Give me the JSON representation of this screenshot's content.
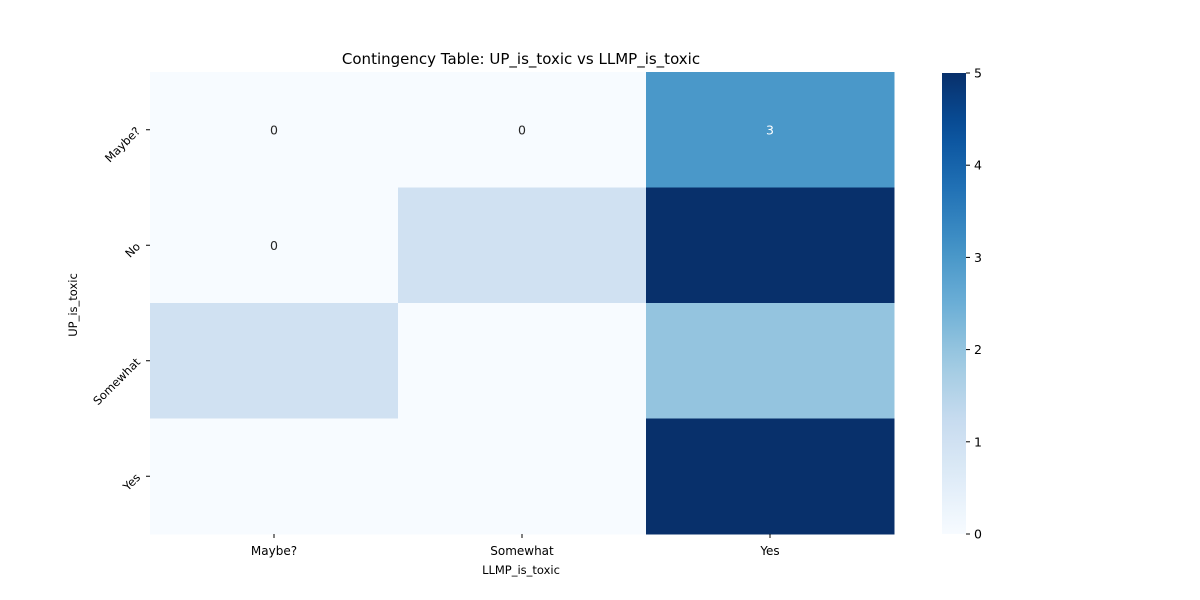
{
  "chart_data": {
    "type": "heatmap",
    "title": "Contingency Table: UP_is_toxic vs LLMP_is_toxic",
    "xlabel": "LLMP_is_toxic",
    "ylabel": "UP_is_toxic",
    "x_categories": [
      "Maybe?",
      "Somewhat",
      "Yes"
    ],
    "y_categories": [
      "Maybe?",
      "No",
      "Somewhat",
      "Yes"
    ],
    "values": [
      [
        0,
        0,
        3
      ],
      [
        0,
        1,
        5
      ],
      [
        1,
        0,
        2
      ],
      [
        0,
        0,
        5
      ]
    ],
    "annotations": [
      [
        "0",
        "0",
        "3"
      ],
      [
        "0",
        "",
        ""
      ],
      [
        "",
        "",
        ""
      ],
      [
        "",
        "",
        ""
      ]
    ],
    "colormap": "Blues",
    "vmin": 0,
    "vmax": 5,
    "colorbar_ticks": [
      "0",
      "1",
      "2",
      "3",
      "4",
      "5"
    ],
    "colors": {
      "low": "#f7fbff",
      "high": "#08306b"
    },
    "grid": false,
    "legend": "colorbar-right"
  }
}
